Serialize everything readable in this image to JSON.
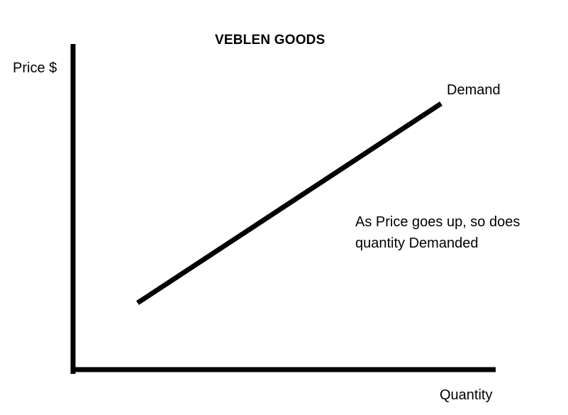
{
  "diagram": {
    "title": "VEBLEN GOODS",
    "y_axis_label": "Price $",
    "x_axis_label": "Quantity",
    "curve_label": "Demand",
    "annotation": {
      "line1": "As Price goes up, so does",
      "line2": "quantity Demanded"
    },
    "colors": {
      "ink": "#000000",
      "background": "#ffffff"
    }
  }
}
